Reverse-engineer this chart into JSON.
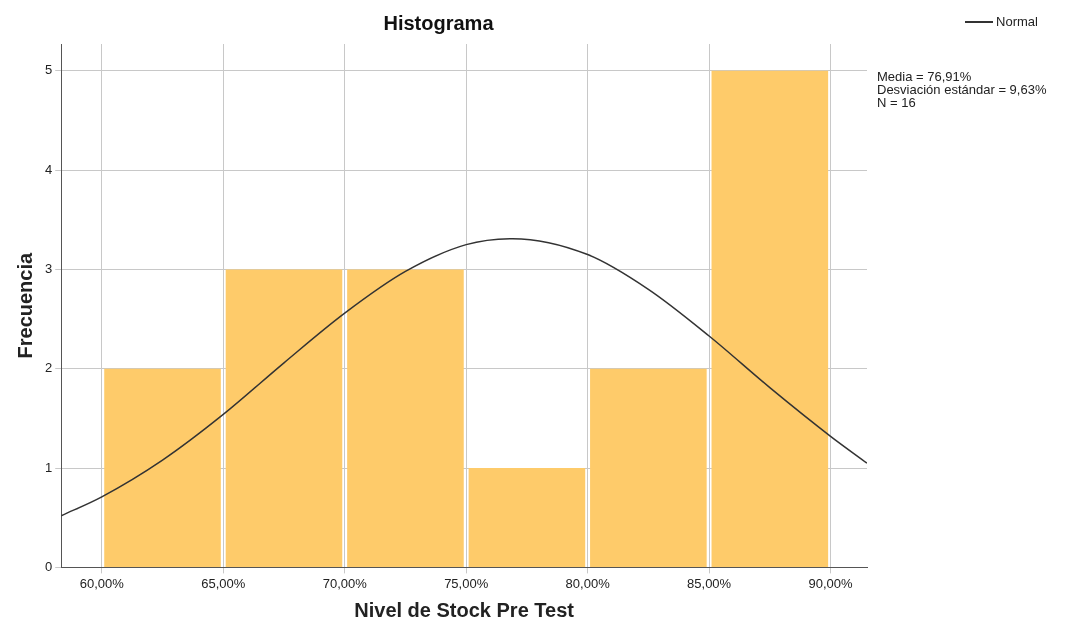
{
  "chart_data": {
    "type": "histogram",
    "title": "Histograma",
    "xlabel": "Nivel de Stock Pre Test",
    "ylabel": "Frecuencia",
    "bins": [
      60,
      65,
      70,
      75,
      80,
      85,
      90
    ],
    "values": [
      2,
      3,
      3,
      1,
      2,
      5
    ],
    "color": "#fecb6a",
    "series": [
      {
        "name": "Normal",
        "type": "line",
        "color": "#333333",
        "x": [
          58.33,
          60,
          62.5,
          65,
          67.5,
          70,
          72.5,
          75,
          76.91,
          80,
          82.5,
          85,
          87.5,
          90,
          91.5
        ],
        "values": [
          0.52,
          0.71,
          1.08,
          1.54,
          2.06,
          2.56,
          2.98,
          3.25,
          3.31,
          3.15,
          2.8,
          2.33,
          1.81,
          1.32,
          1.05
        ]
      }
    ],
    "xlim": [
      58.33,
      91.5
    ],
    "xticks": [
      {
        "value": 60,
        "label": "60,00%"
      },
      {
        "value": 65,
        "label": "65,00%"
      },
      {
        "value": 70,
        "label": "70,00%"
      },
      {
        "value": 75,
        "label": "75,00%"
      },
      {
        "value": 80,
        "label": "80,00%"
      },
      {
        "value": 85,
        "label": "85,00%"
      },
      {
        "value": 90,
        "label": "90,00%"
      }
    ],
    "ylim": [
      0,
      5.27
    ],
    "yticks": [
      0,
      1,
      2,
      3,
      4,
      5
    ],
    "grid": true,
    "legend": "top right",
    "marker": "none",
    "line_style": "solid",
    "annotations": [
      "Media = 76,91%",
      "Desviación estándar = 9,63%",
      "N = 16"
    ]
  }
}
